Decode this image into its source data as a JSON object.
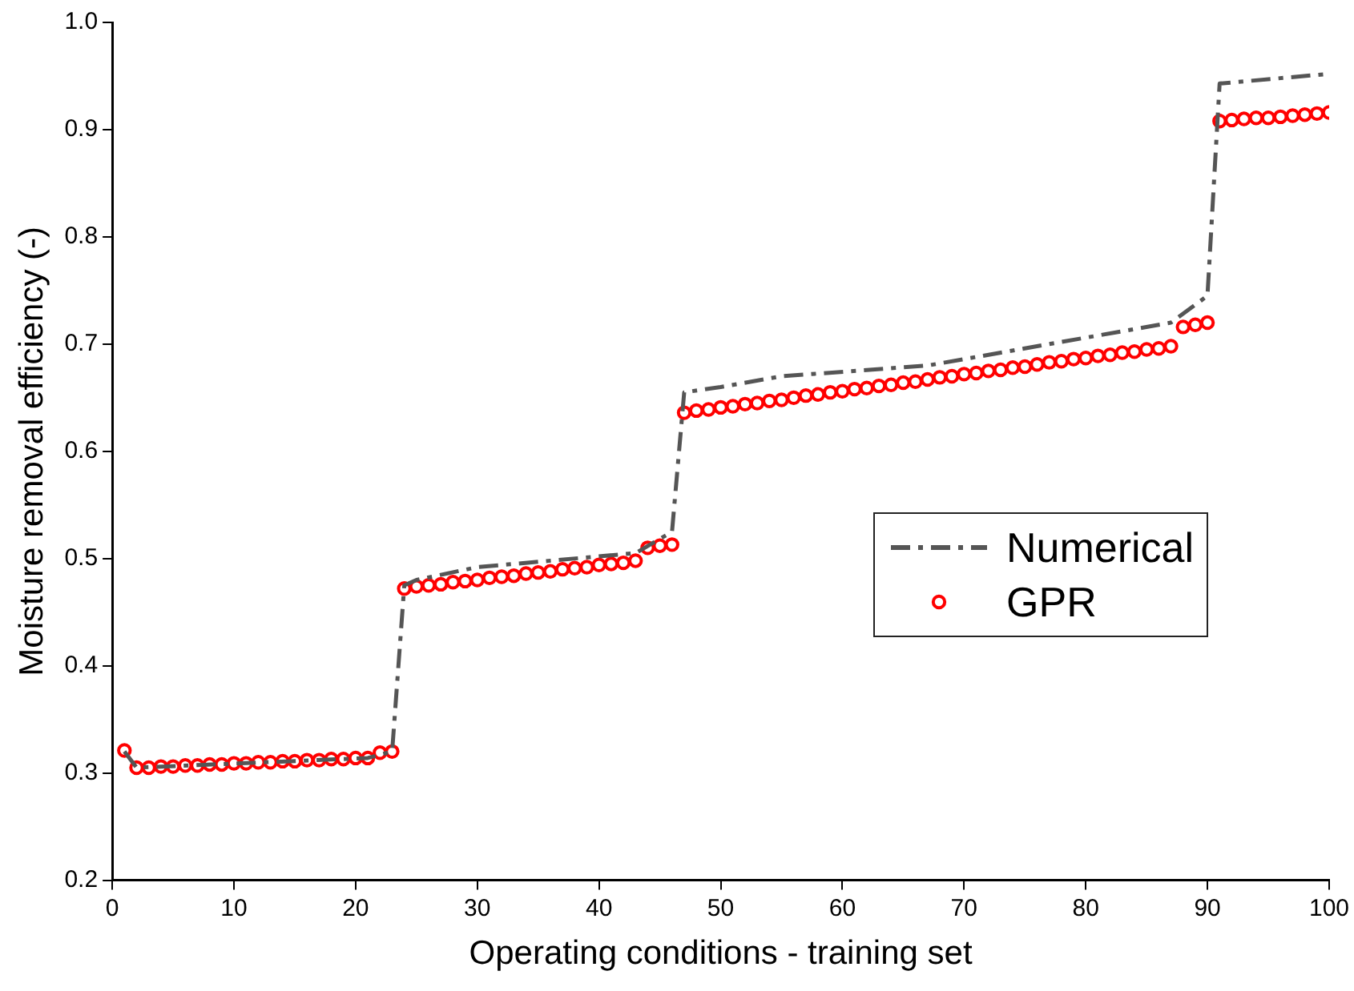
{
  "chart_data": {
    "type": "line",
    "xlabel": "Operating conditions - training set",
    "ylabel": "Moisture removal efficiency (-)",
    "xlim": [
      0,
      100
    ],
    "xticks": [
      0,
      10,
      20,
      30,
      40,
      50,
      60,
      70,
      80,
      90,
      100
    ],
    "ylim": [
      0.2,
      1.0
    ],
    "yticks": [
      0.2,
      0.3,
      0.4,
      0.5,
      0.6,
      0.7,
      0.8,
      0.9,
      {
        "value": 1.0,
        "label": "1.0"
      }
    ],
    "grid": false,
    "legend": "right",
    "series": [
      {
        "name": "Numerical",
        "type": "line",
        "color": "#555555",
        "line_style": "dashdot",
        "marker": "none",
        "x": [
          1,
          2,
          21,
          23,
          24,
          25,
          30,
          43,
          46,
          47,
          50,
          55,
          67,
          77,
          87,
          90,
          91,
          100
        ],
        "values": [
          0.32,
          0.305,
          0.314,
          0.32,
          0.475,
          0.48,
          0.492,
          0.505,
          0.525,
          0.655,
          0.66,
          0.67,
          0.68,
          0.7,
          0.72,
          0.745,
          0.943,
          0.952
        ]
      },
      {
        "name": "GPR",
        "type": "scatter",
        "color": "#ff0000",
        "marker": "circle",
        "x": [
          1,
          2,
          3,
          4,
          5,
          6,
          7,
          8,
          9,
          10,
          11,
          12,
          13,
          14,
          15,
          16,
          17,
          18,
          19,
          20,
          21,
          22,
          23,
          24,
          25,
          26,
          27,
          28,
          29,
          30,
          31,
          32,
          33,
          34,
          35,
          36,
          37,
          38,
          39,
          40,
          41,
          42,
          43,
          44,
          45,
          46,
          47,
          48,
          49,
          50,
          51,
          52,
          53,
          54,
          55,
          56,
          57,
          58,
          59,
          60,
          61,
          62,
          63,
          64,
          65,
          66,
          67,
          68,
          69,
          70,
          71,
          72,
          73,
          74,
          75,
          76,
          77,
          78,
          79,
          80,
          81,
          82,
          83,
          84,
          85,
          86,
          87,
          88,
          89,
          90,
          91,
          92,
          93,
          94,
          95,
          96,
          97,
          98,
          99,
          100
        ],
        "values": [
          0.321,
          0.305,
          0.305,
          0.306,
          0.306,
          0.307,
          0.307,
          0.308,
          0.308,
          0.309,
          0.309,
          0.31,
          0.31,
          0.311,
          0.311,
          0.312,
          0.312,
          0.313,
          0.313,
          0.314,
          0.314,
          0.319,
          0.32,
          0.472,
          0.474,
          0.475,
          0.476,
          0.478,
          0.479,
          0.48,
          0.482,
          0.483,
          0.484,
          0.486,
          0.487,
          0.488,
          0.49,
          0.491,
          0.492,
          0.494,
          0.495,
          0.496,
          0.498,
          0.51,
          0.512,
          0.513,
          0.636,
          0.638,
          0.639,
          0.641,
          0.642,
          0.644,
          0.645,
          0.647,
          0.648,
          0.65,
          0.652,
          0.653,
          0.655,
          0.656,
          0.658,
          0.659,
          0.661,
          0.662,
          0.664,
          0.665,
          0.667,
          0.669,
          0.67,
          0.672,
          0.673,
          0.675,
          0.676,
          0.678,
          0.679,
          0.681,
          0.683,
          0.684,
          0.686,
          0.687,
          0.689,
          0.69,
          0.692,
          0.693,
          0.695,
          0.696,
          0.698,
          0.716,
          0.718,
          0.72,
          0.908,
          0.909,
          0.91,
          0.911,
          0.911,
          0.912,
          0.913,
          0.914,
          0.915,
          0.916
        ]
      }
    ]
  }
}
